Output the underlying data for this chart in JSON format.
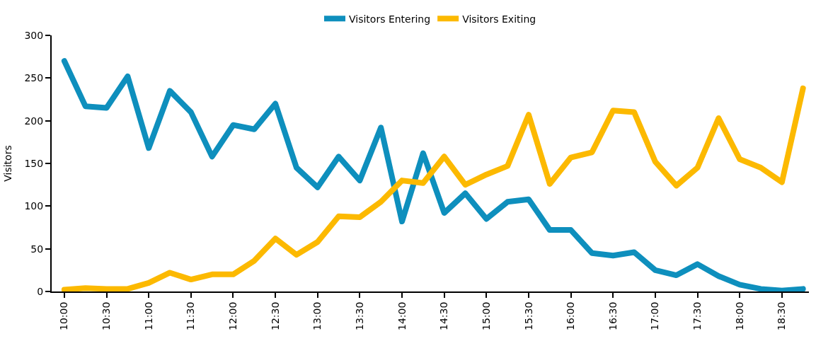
{
  "chart_data": {
    "type": "line",
    "ylabel": "Visitors",
    "x": [
      10,
      10.25,
      10.5,
      10.75,
      11,
      11.25,
      11.5,
      11.75,
      12,
      12.25,
      12.5,
      12.75,
      13,
      13.25,
      13.5,
      13.75,
      14,
      14.25,
      14.5,
      14.75,
      15,
      15.25,
      15.5,
      15.75,
      16,
      16.25,
      16.5,
      16.75,
      17,
      17.25,
      17.5,
      17.75,
      18,
      18.25,
      18.5,
      18.75
    ],
    "series": [
      {
        "name": "Visitors Entering",
        "color": "#0e8fbd",
        "values": [
          270,
          217,
          215,
          252,
          168,
          235,
          210,
          158,
          195,
          190,
          220,
          145,
          122,
          158,
          130,
          192,
          82,
          162,
          92,
          115,
          85,
          105,
          108,
          72,
          72,
          45,
          42,
          46,
          25,
          19,
          32,
          18,
          8,
          3,
          1,
          3
        ]
      },
      {
        "name": "Visitors Exiting",
        "color": "#fcb900",
        "values": [
          2,
          4,
          3,
          3,
          10,
          22,
          14,
          20,
          20,
          36,
          62,
          43,
          58,
          88,
          87,
          105,
          130,
          127,
          158,
          125,
          137,
          147,
          207,
          126,
          157,
          163,
          212,
          210,
          152,
          124,
          145,
          203,
          155,
          145,
          128,
          238
        ]
      }
    ],
    "xlim": [
      9.85,
      18.82
    ],
    "xticks": [
      {
        "value": 10,
        "label": "10:00"
      },
      {
        "value": 10.5,
        "label": "10:30"
      },
      {
        "value": 11,
        "label": "11:00"
      },
      {
        "value": 11.5,
        "label": "11:30"
      },
      {
        "value": 12,
        "label": "12:00"
      },
      {
        "value": 12.5,
        "label": "12:30"
      },
      {
        "value": 13,
        "label": "13:00"
      },
      {
        "value": 13.5,
        "label": "13:30"
      },
      {
        "value": 14,
        "label": "14:00"
      },
      {
        "value": 14.5,
        "label": "14:30"
      },
      {
        "value": 15,
        "label": "15:00"
      },
      {
        "value": 15.5,
        "label": "15:30"
      },
      {
        "value": 16,
        "label": "16:00"
      },
      {
        "value": 16.5,
        "label": "16:30"
      },
      {
        "value": 17,
        "label": "17:00"
      },
      {
        "value": 17.5,
        "label": "17:30"
      },
      {
        "value": 18,
        "label": "18:00"
      },
      {
        "value": 18.5,
        "label": "18:30"
      }
    ],
    "ylim": [
      0,
      300
    ],
    "yticks": [
      0,
      50,
      100,
      150,
      200,
      250,
      300
    ],
    "legend": "top",
    "line_style": "solid"
  }
}
